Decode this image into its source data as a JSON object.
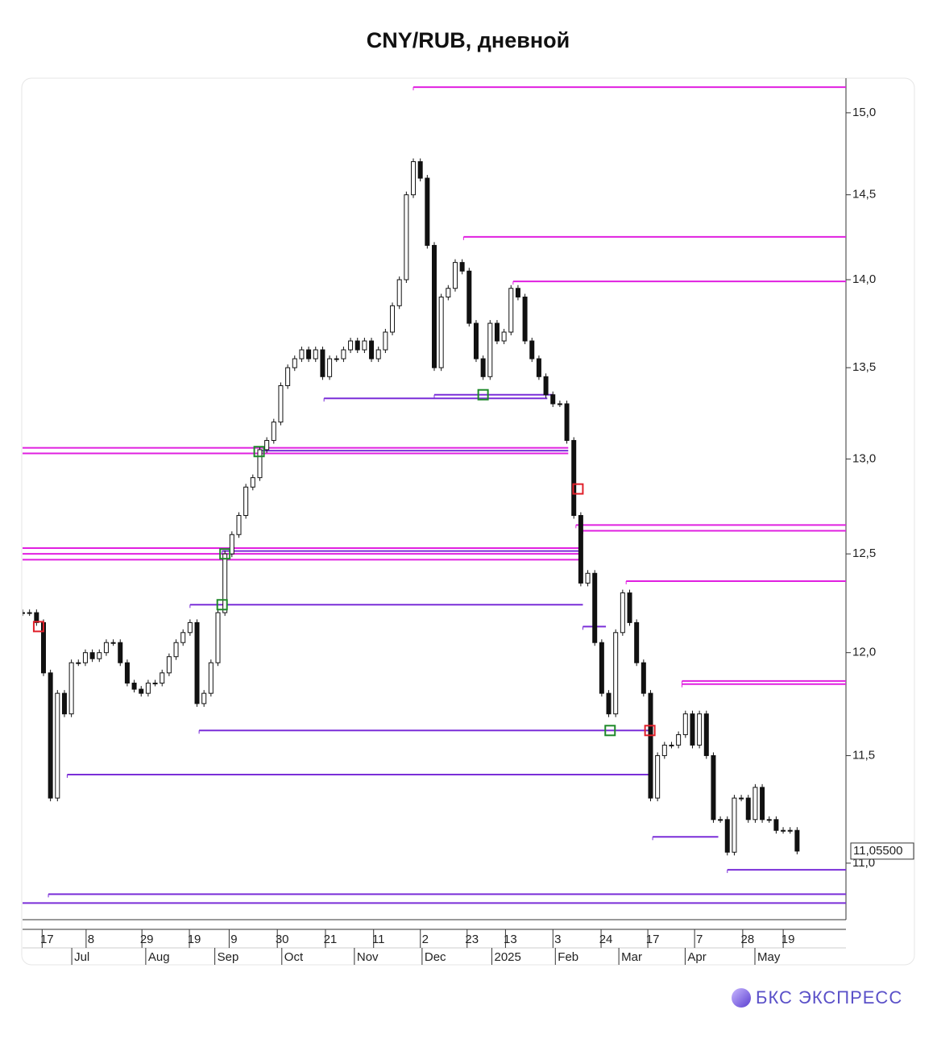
{
  "chart_data": {
    "type": "candlestick",
    "title": "CNY/RUB, дневной",
    "brand": "БКС ЭКСПРЕСС",
    "log_scale": true,
    "ylim": [
      10.746,
      15.216
    ],
    "yticks": [
      {
        "value": 11.0,
        "label": "11,0"
      },
      {
        "value": 11.5,
        "label": "11,5"
      },
      {
        "value": 12.0,
        "label": "12,0"
      },
      {
        "value": 12.5,
        "label": "12,5"
      },
      {
        "value": 13.0,
        "label": "13,0"
      },
      {
        "value": 13.5,
        "label": "13,5"
      },
      {
        "value": 14.0,
        "label": "14,0"
      },
      {
        "value": 14.5,
        "label": "14,5"
      },
      {
        "value": 15.0,
        "label": "15,0"
      }
    ],
    "xlim": [
      0,
      118
    ],
    "xticks": [
      {
        "value": 3.5,
        "label": "17"
      },
      {
        "value": 9.8,
        "label": "8"
      },
      {
        "value": 17.8,
        "label": "29"
      },
      {
        "value": 24.6,
        "label": "19"
      },
      {
        "value": 30.3,
        "label": "9"
      },
      {
        "value": 37.2,
        "label": "30"
      },
      {
        "value": 44.1,
        "label": "21"
      },
      {
        "value": 51,
        "label": "11"
      },
      {
        "value": 57.7,
        "label": "2"
      },
      {
        "value": 64.4,
        "label": "23"
      },
      {
        "value": 69.9,
        "label": "13"
      },
      {
        "value": 76.7,
        "label": "3"
      },
      {
        "value": 83.6,
        "label": "24"
      },
      {
        "value": 90.3,
        "label": "17"
      },
      {
        "value": 97,
        "label": "7"
      },
      {
        "value": 103.9,
        "label": "28"
      },
      {
        "value": 109.7,
        "label": "19"
      }
    ],
    "month_ticks": [
      {
        "value": 7.4,
        "label": "Jul"
      },
      {
        "value": 18,
        "label": "Aug"
      },
      {
        "value": 27.9,
        "label": "Sep"
      },
      {
        "value": 37.5,
        "label": "Oct"
      },
      {
        "value": 47.9,
        "label": "Nov"
      },
      {
        "value": 57.6,
        "label": "Dec"
      },
      {
        "value": 67.6,
        "label": "2025"
      },
      {
        "value": 76.7,
        "label": "Feb"
      },
      {
        "value": 85.8,
        "label": "Mar"
      },
      {
        "value": 95.3,
        "label": "Apr"
      },
      {
        "value": 105.3,
        "label": "May"
      }
    ],
    "close": [
      12.2,
      12.2,
      12.15,
      11.9,
      11.3,
      11.8,
      11.7,
      11.95,
      11.95,
      12.0,
      11.97,
      12.0,
      12.05,
      12.05,
      11.95,
      11.85,
      11.82,
      11.8,
      11.85,
      11.85,
      11.9,
      11.98,
      12.05,
      12.1,
      12.15,
      11.75,
      11.8,
      11.95,
      12.2,
      12.5,
      12.6,
      12.7,
      12.85,
      12.9,
      13.05,
      13.1,
      13.2,
      13.4,
      13.5,
      13.55,
      13.6,
      13.55,
      13.6,
      13.45,
      13.55,
      13.55,
      13.6,
      13.65,
      13.6,
      13.65,
      13.55,
      13.6,
      13.7,
      13.85,
      14.0,
      14.5,
      14.7,
      14.6,
      14.2,
      13.5,
      13.9,
      13.95,
      14.1,
      14.05,
      13.75,
      13.55,
      13.45,
      13.75,
      13.65,
      13.7,
      13.95,
      13.9,
      13.65,
      13.55,
      13.45,
      13.35,
      13.3,
      13.3,
      13.1,
      12.7,
      12.35,
      12.4,
      12.05,
      11.8,
      11.7,
      12.1,
      12.3,
      12.15,
      11.95,
      11.8,
      11.3,
      11.5,
      11.55,
      11.55,
      11.6,
      11.7,
      11.55,
      11.7,
      11.5,
      11.2,
      11.2,
      11.05,
      11.3,
      11.3,
      11.2,
      11.35,
      11.2,
      11.2,
      11.15,
      11.15,
      11.15,
      11.055
    ],
    "last_value_label": "11,05500",
    "levels": [
      {
        "value": 15.16,
        "start": 56,
        "color": "#e020e0"
      },
      {
        "value": 14.25,
        "start": 63.2,
        "color": "#e020e0"
      },
      {
        "value": 13.99,
        "start": 70.3,
        "color": "#e020e0"
      },
      {
        "value": 13.33,
        "start": 43.2,
        "end": 75.2,
        "color": "#7a2ed8"
      },
      {
        "value": 13.35,
        "start": 59,
        "end": 76,
        "color": "#7a2ed8"
      },
      {
        "value": 13.06,
        "start": 0,
        "end": 78.2,
        "color": "#e020e0"
      },
      {
        "value": 13.03,
        "start": 0,
        "end": 78.2,
        "color": "#e020e0"
      },
      {
        "value": 13.045,
        "start": 34,
        "end": 78.2,
        "color": "#7a2ed8"
      },
      {
        "value": 12.65,
        "start": 79.3,
        "color": "#e020e0"
      },
      {
        "value": 12.62,
        "start": 80.3,
        "color": "#e020e0"
      },
      {
        "value": 12.53,
        "start": 0,
        "end": 80.3,
        "color": "#e020e0"
      },
      {
        "value": 12.5,
        "start": 0,
        "end": 80.3,
        "color": "#e020e0"
      },
      {
        "value": 12.47,
        "start": 0,
        "end": 80.3,
        "color": "#e020e0"
      },
      {
        "value": 12.515,
        "start": 28.6,
        "end": 80.3,
        "color": "#7a2ed8"
      },
      {
        "value": 12.24,
        "start": 24,
        "end": 80.3,
        "color": "#7a2ed8"
      },
      {
        "value": 12.13,
        "start": 80.3,
        "end": 83.6,
        "color": "#7a2ed8"
      },
      {
        "value": 12.36,
        "start": 86.5,
        "color": "#e020e0"
      },
      {
        "value": 11.86,
        "start": 94.5,
        "color": "#e020e0"
      },
      {
        "value": 11.845,
        "start": 94.5,
        "color": "#e020e0"
      },
      {
        "value": 11.62,
        "start": 25.3,
        "end": 90.3,
        "color": "#7a2ed8"
      },
      {
        "value": 11.41,
        "start": 6.4,
        "end": 90.3,
        "color": "#7a2ed8"
      },
      {
        "value": 11.12,
        "start": 90.3,
        "end": 99.7,
        "color": "#7a2ed8"
      },
      {
        "value": 10.97,
        "start": 101,
        "color": "#7a2ed8"
      },
      {
        "value": 10.86,
        "start": 3.7,
        "color": "#7a2ed8"
      },
      {
        "value": 10.82,
        "start": 0,
        "color": "#7a2ed8"
      }
    ],
    "signals": [
      {
        "x": 2.3,
        "value": 12.13,
        "color": "#e0202a"
      },
      {
        "x": 28.6,
        "value": 12.24,
        "color": "#1f8a2a"
      },
      {
        "x": 29,
        "value": 12.5,
        "color": "#1f8a2a"
      },
      {
        "x": 33.9,
        "value": 13.04,
        "color": "#1f8a2a"
      },
      {
        "x": 66,
        "value": 13.35,
        "color": "#1f8a2a"
      },
      {
        "x": 79.6,
        "value": 12.84,
        "color": "#e0202a"
      },
      {
        "x": 84.2,
        "value": 11.62,
        "color": "#1f8a2a"
      },
      {
        "x": 89.9,
        "value": 11.62,
        "color": "#e0202a"
      }
    ]
  }
}
